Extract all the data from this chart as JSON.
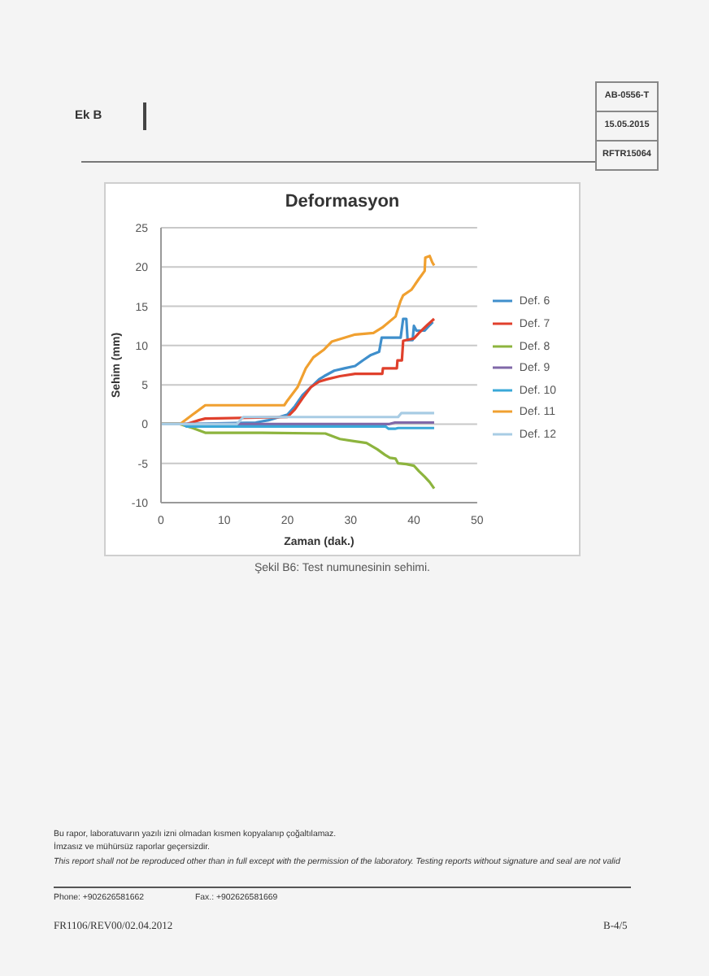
{
  "chart_data": {
    "type": "line",
    "title": "Deformasyon",
    "xlabel": "Zaman (dak.)",
    "ylabel": "Sehim (mm)",
    "xlim": [
      0,
      50
    ],
    "xticks": [
      0,
      10,
      20,
      30,
      40,
      50
    ],
    "ylim": [
      -10,
      25
    ],
    "yticks": [
      -10,
      -5,
      0,
      5,
      10,
      15,
      20,
      25
    ],
    "grid": "y",
    "legend": "right",
    "series": [
      {
        "name": "Def. 6",
        "color": "#3f8fcc",
        "x": [
          0,
          4,
          15,
          17,
          18.7,
          20,
          21.2,
          22.4,
          23.7,
          25,
          25.8,
          27.4,
          29,
          30.7,
          31.9,
          33.2,
          34.5,
          34.9,
          37.9,
          38.3,
          38.8,
          39,
          39.8,
          40,
          40.4,
          41.7,
          42.5,
          43
        ],
        "values": [
          0,
          0,
          0.2,
          0.5,
          0.9,
          1.2,
          2.3,
          3.7,
          4.7,
          5.7,
          6.1,
          6.8,
          7.1,
          7.4,
          8.1,
          8.8,
          9.2,
          11.0,
          11.0,
          13.4,
          13.4,
          10.7,
          10.7,
          12.5,
          11.9,
          11.9,
          12.6,
          13.0
        ]
      },
      {
        "name": "Def. 7",
        "color": "#e0402c",
        "x": [
          0,
          4,
          6,
          7,
          20,
          21.2,
          22.4,
          23.7,
          25,
          26.2,
          28.3,
          30.7,
          35,
          35.1,
          37.3,
          37.4,
          38.1,
          38.3,
          40,
          40.8,
          42.1,
          43.2
        ],
        "values": [
          0,
          0,
          0.5,
          0.7,
          0.9,
          1.9,
          3.3,
          4.7,
          5.4,
          5.7,
          6.1,
          6.4,
          6.4,
          7.1,
          7.1,
          8.1,
          8.1,
          10.6,
          10.9,
          11.6,
          12.6,
          13.4
        ]
      },
      {
        "name": "Def. 8",
        "color": "#8db43e",
        "x": [
          0,
          3,
          5,
          7,
          16,
          26,
          28.3,
          30.7,
          32.5,
          34.2,
          35.4,
          36.2,
          37.1,
          37.5,
          38.8,
          40,
          40.8,
          41.7,
          42.5,
          43.2
        ],
        "values": [
          0,
          0,
          -0.5,
          -1.1,
          -1.1,
          -1.2,
          -1.9,
          -2.2,
          -2.4,
          -3.2,
          -3.9,
          -4.3,
          -4.4,
          -5.0,
          -5.1,
          -5.3,
          -6.0,
          -6.7,
          -7.4,
          -8.2
        ]
      },
      {
        "name": "Def. 9",
        "color": "#8068a8",
        "x": [
          0,
          36,
          37,
          43.2
        ],
        "values": [
          0,
          0,
          0.2,
          0.2
        ]
      },
      {
        "name": "Def. 10",
        "color": "#3aa8d8",
        "x": [
          0,
          3.5,
          4,
          35.5,
          36,
          37,
          37.5,
          43.2
        ],
        "values": [
          0,
          0,
          -0.3,
          -0.3,
          -0.6,
          -0.6,
          -0.5,
          -0.5
        ]
      },
      {
        "name": "Def. 11",
        "color": "#f0a030",
        "x": [
          0,
          3,
          5,
          7,
          19.5,
          20,
          21.6,
          22.9,
          24.1,
          25.8,
          27,
          29,
          30.7,
          33.6,
          35,
          37.1,
          37.9,
          38.3,
          39.6,
          40.8,
          41.7,
          41.8,
          42.5,
          42.9,
          43.2
        ],
        "values": [
          0,
          0,
          1.2,
          2.4,
          2.4,
          3.0,
          4.7,
          7.1,
          8.5,
          9.5,
          10.5,
          11.0,
          11.4,
          11.6,
          12.3,
          13.7,
          15.7,
          16.4,
          17.1,
          18.5,
          19.5,
          21.2,
          21.4,
          20.6,
          20.2
        ]
      },
      {
        "name": "Def. 12",
        "color": "#a8cce4",
        "x": [
          0,
          12,
          13,
          37.5,
          38,
          43.2
        ],
        "values": [
          0,
          0,
          0.9,
          0.9,
          1.4,
          1.4
        ]
      }
    ],
    "annotations": [
      "Ek B",
      "AB-0556-T",
      "15.05.2015",
      "RFTR15064",
      "Şekil B6: Test numunesinin sehimi.",
      "Bu rapor, laboratuvarın yazılı izni olmadan kısmen kopyalanıp çoğaltılamaz.",
      "İmzasız ve mühürsüz raporlar geçersizdir.",
      "This report shall not be reproduced other than in full except with the permission of the laboratory. Testing reports without signature and seal are not valid",
      "Phone: +902626581662",
      "Fax.: +902626581669",
      "FR1106/REV00/02.04.2012",
      "B-4/5"
    ]
  }
}
